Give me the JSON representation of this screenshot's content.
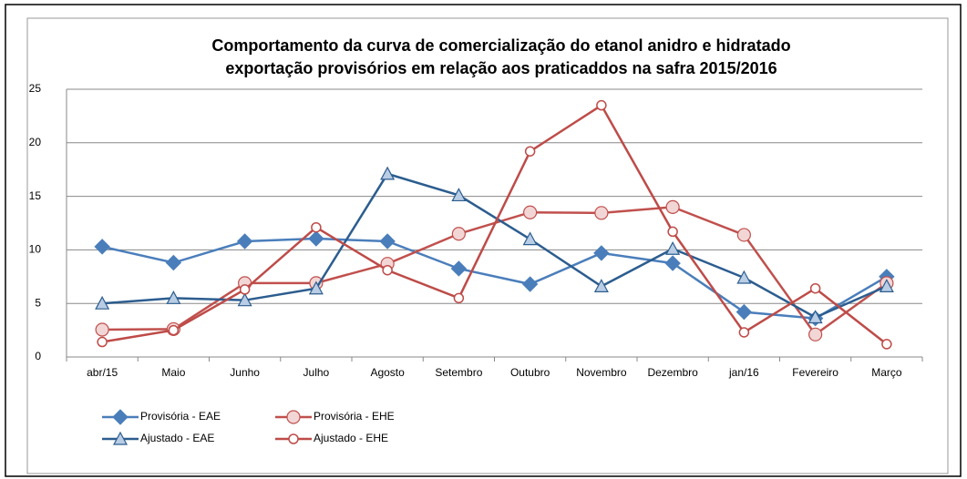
{
  "chart_data": {
    "type": "line",
    "title": [
      "Comportamento da curva de comercialização do etanol  anidro e hidratado",
      "exportação provisórios em relação aos praticaddos na safra 2015/2016"
    ],
    "categories": [
      "abr/15",
      "Maio",
      "Junho",
      "Julho",
      "Agosto",
      "Setembro",
      "Outubro",
      "Novembro",
      "Dezembro",
      "jan/16",
      "Fevereiro",
      "Março"
    ],
    "series": [
      {
        "name": "Provisória - EAE",
        "color": "#4a7ebb",
        "marker": "diamond",
        "values": [
          10.3,
          8.8,
          10.8,
          11.05,
          10.8,
          8.25,
          6.8,
          9.7,
          8.75,
          4.2,
          3.6,
          7.5
        ]
      },
      {
        "name": "Provisória - EHE",
        "color": "#c0504d",
        "marker": "large-circle",
        "values": [
          2.55,
          2.6,
          6.9,
          6.9,
          8.7,
          11.5,
          13.5,
          13.45,
          14.0,
          11.4,
          2.1,
          6.9
        ]
      },
      {
        "name": "Ajustado - EAE",
        "color": "#2c5d8f",
        "marker": "triangle",
        "values": [
          5.0,
          5.5,
          5.3,
          6.4,
          17.1,
          15.1,
          11.0,
          6.6,
          10.1,
          7.4,
          3.7,
          6.6
        ]
      },
      {
        "name": "Ajustado - EHE",
        "color": "#be4b48",
        "marker": "circle",
        "values": [
          1.4,
          2.5,
          6.3,
          12.1,
          8.1,
          5.5,
          19.2,
          23.5,
          11.7,
          2.3,
          6.4,
          1.2
        ]
      }
    ],
    "ylim": [
      0,
      25
    ],
    "yticks": [
      0,
      5,
      10,
      15,
      20,
      25
    ],
    "grid": true
  }
}
